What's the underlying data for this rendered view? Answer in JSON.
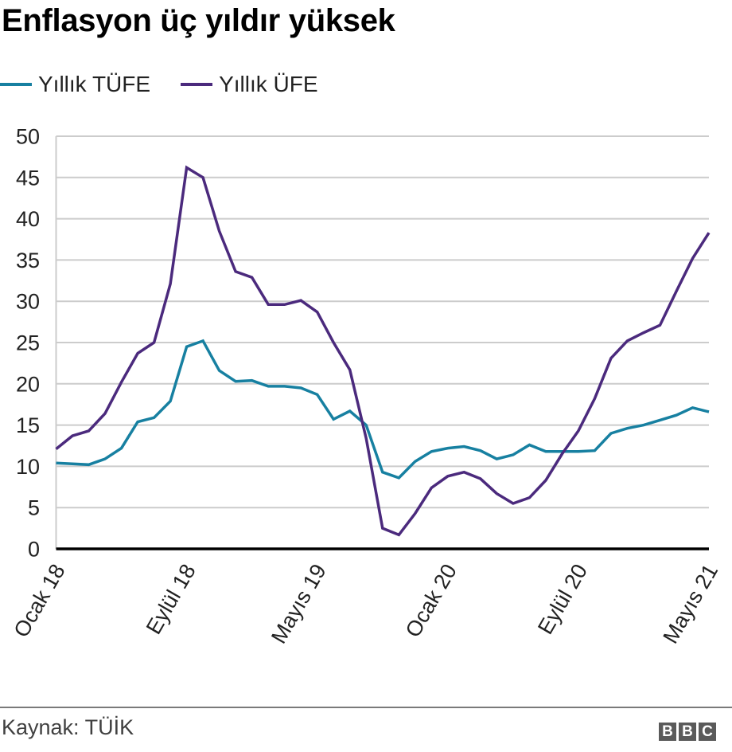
{
  "header": {
    "title": "Enflasyon üç yıldır yüksek"
  },
  "legend": [
    {
      "label": "Yıllık TÜFE",
      "color": "#1780a1"
    },
    {
      "label": "Yıllık ÜFE",
      "color": "#4b2a7d"
    }
  ],
  "footer": {
    "source": "Kaynak: TÜİK",
    "logo": [
      "B",
      "B",
      "C"
    ]
  },
  "chart_data": {
    "type": "line",
    "title": "Enflasyon üç yıldır yüksek",
    "xlabel": "",
    "ylabel": "",
    "ylim": [
      0,
      50
    ],
    "yticks": [
      0,
      5,
      10,
      15,
      20,
      25,
      30,
      35,
      40,
      45,
      50
    ],
    "grid": true,
    "legend_position": "top-left",
    "x": [
      "Ocak 18",
      "Şubat 18",
      "Mart 18",
      "Nisan 18",
      "Mayıs 18",
      "Haziran 18",
      "Temmuz 18",
      "Ağustos 18",
      "Eylül 18",
      "Ekim 18",
      "Kasım 18",
      "Aralık 18",
      "Ocak 19",
      "Şubat 19",
      "Mart 19",
      "Nisan 19",
      "Mayıs 19",
      "Haziran 19",
      "Temmuz 19",
      "Ağustos 19",
      "Eylül 19",
      "Ekim 19",
      "Kasım 19",
      "Aralık 19",
      "Ocak 20",
      "Şubat 20",
      "Mart 20",
      "Nisan 20",
      "Mayıs 20",
      "Haziran 20",
      "Temmuz 20",
      "Ağustos 20",
      "Eylül 20",
      "Ekim 20",
      "Kasım 20",
      "Aralık 20",
      "Ocak 21",
      "Şubat 21",
      "Mart 21",
      "Nisan 21",
      "Mayıs 21"
    ],
    "xtick_labels": [
      {
        "index": 0,
        "label": "Ocak 18"
      },
      {
        "index": 8,
        "label": "Eylül 18"
      },
      {
        "index": 16,
        "label": "Mayıs 19"
      },
      {
        "index": 24,
        "label": "Ocak 20"
      },
      {
        "index": 32,
        "label": "Eylül 20"
      },
      {
        "index": 40,
        "label": "Mayıs 21"
      }
    ],
    "series": [
      {
        "name": "Yıllık TÜFE",
        "color": "#1780a1",
        "values": [
          10.4,
          10.3,
          10.2,
          10.9,
          12.2,
          15.4,
          15.9,
          17.9,
          24.5,
          25.2,
          21.6,
          20.3,
          20.4,
          19.7,
          19.7,
          19.5,
          18.7,
          15.7,
          16.7,
          15.0,
          9.3,
          8.6,
          10.6,
          11.8,
          12.2,
          12.4,
          11.9,
          10.9,
          11.4,
          12.6,
          11.8,
          11.8,
          11.8,
          11.9,
          14.0,
          14.6,
          15.0,
          15.6,
          16.2,
          17.1,
          16.6
        ]
      },
      {
        "name": "Yıllık ÜFE",
        "color": "#4b2a7d",
        "values": [
          12.1,
          13.7,
          14.3,
          16.4,
          20.2,
          23.7,
          25.0,
          32.1,
          46.2,
          45.0,
          38.5,
          33.6,
          32.9,
          29.6,
          29.6,
          30.1,
          28.7,
          25.0,
          21.7,
          13.4,
          2.5,
          1.7,
          4.3,
          7.4,
          8.8,
          9.3,
          8.5,
          6.7,
          5.5,
          6.2,
          8.3,
          11.5,
          14.3,
          18.2,
          23.1,
          25.2,
          26.2,
          27.1,
          31.2,
          35.2,
          38.3
        ]
      }
    ]
  }
}
